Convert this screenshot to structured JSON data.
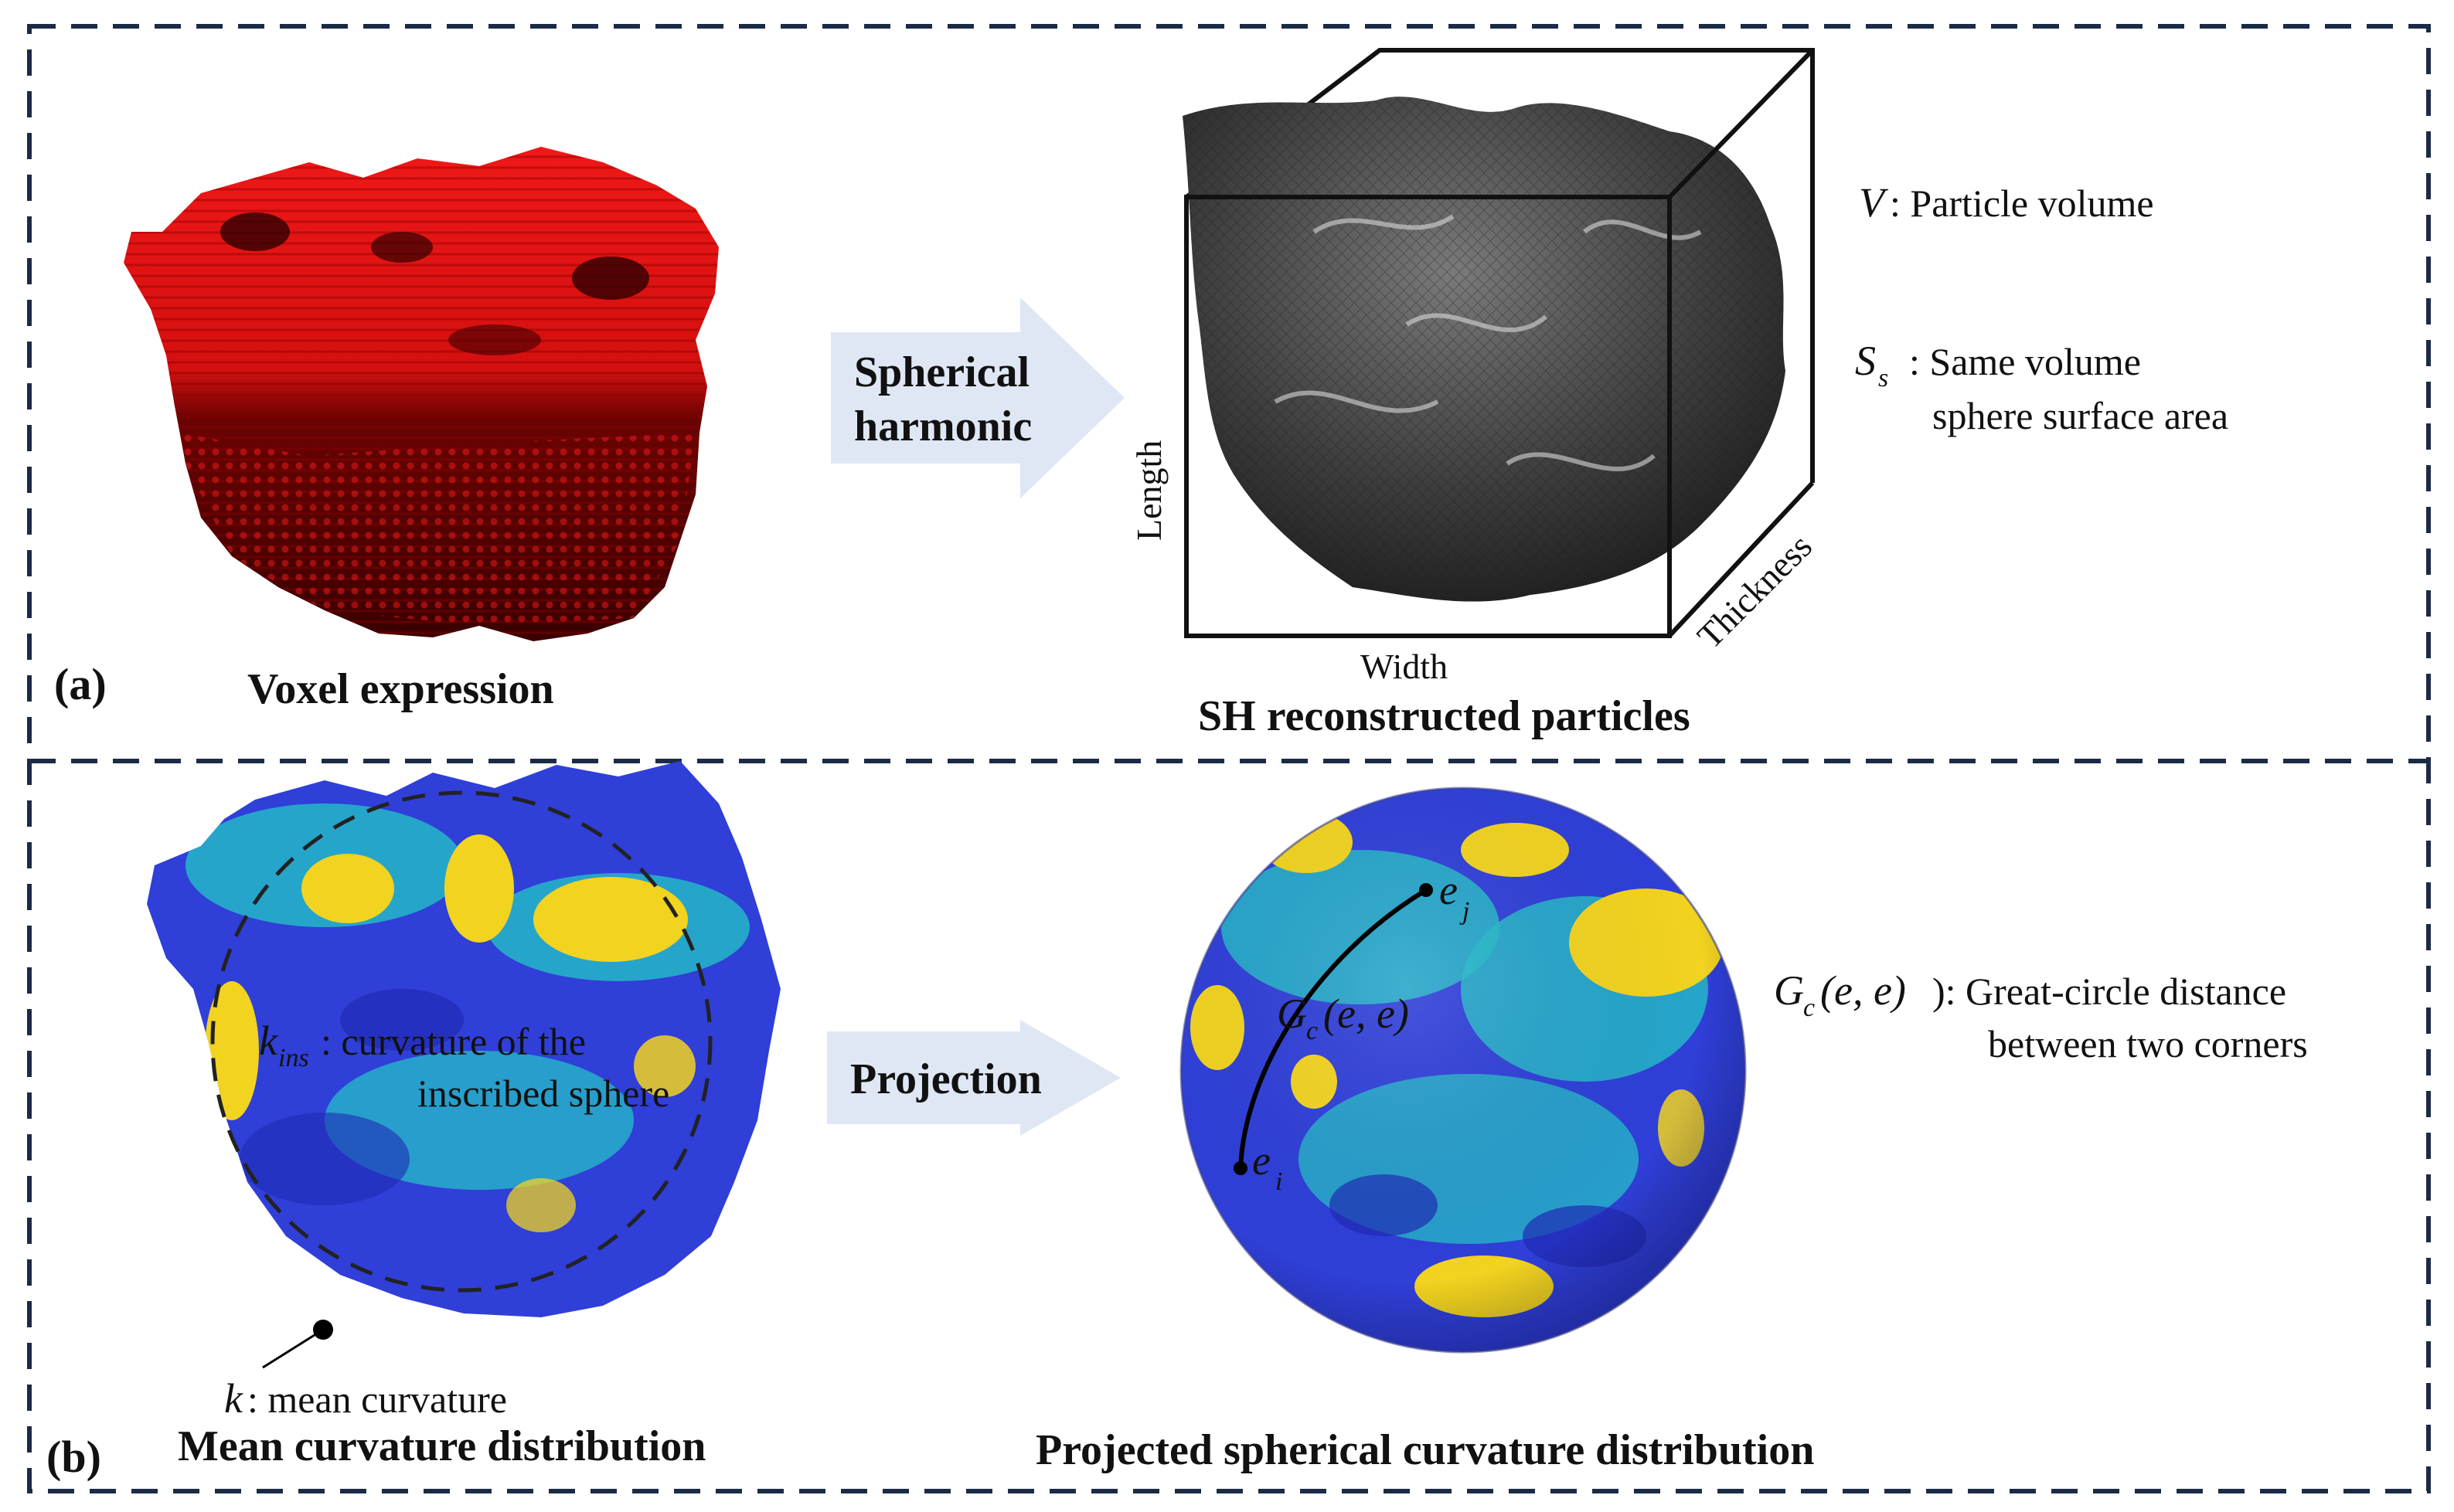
{
  "panel_a": {
    "label": "(a)",
    "voxel_caption": "Voxel expression",
    "arrow_line1": "Spherical",
    "arrow_line2": "harmonic",
    "sh_caption": "SH reconstructed particles",
    "axis_length": "Length",
    "axis_width": "Width",
    "axis_thickness": "Thickness",
    "v_symbol": "V",
    "v_desc": ": Particle volume",
    "s_symbol": "S",
    "s_sub": "s",
    "s_desc_line1": ": Same volume",
    "s_desc_line2": "sphere surface area"
  },
  "panel_b": {
    "label": "(b)",
    "mean_caption": "Mean curvature distribution",
    "k_symbol": "k",
    "k_desc": ": mean curvature",
    "kins_symbol": "k",
    "kins_sub": "ins",
    "kins_desc_line1": ": curvature of the",
    "kins_desc_line2": "inscribed sphere",
    "arrow_text": "Projection",
    "proj_caption": "Projected spherical curvature distribution",
    "ej_symbol": "e",
    "ej_sub": "j",
    "ei_symbol": "e",
    "ei_sub": "i",
    "gc_label": "G",
    "gc_sub": "c",
    "gc_args": "(e, e)",
    "gc_desc_line1": "): Great-circle distance",
    "gc_desc_line2": "between two corners"
  },
  "colors": {
    "frame": "#1c2b45",
    "voxel_red": "#e01010",
    "voxel_dark": "#6a0000",
    "particle_gray": "#4a4a4a",
    "arrow_fill": "#dfe7f4",
    "curv_blue": "#2f3fd8",
    "curv_cyan": "#25b7c8",
    "curv_yellow": "#f2d320"
  },
  "icons": [
    "right-arrow-icon",
    "bounding-box-icon"
  ]
}
